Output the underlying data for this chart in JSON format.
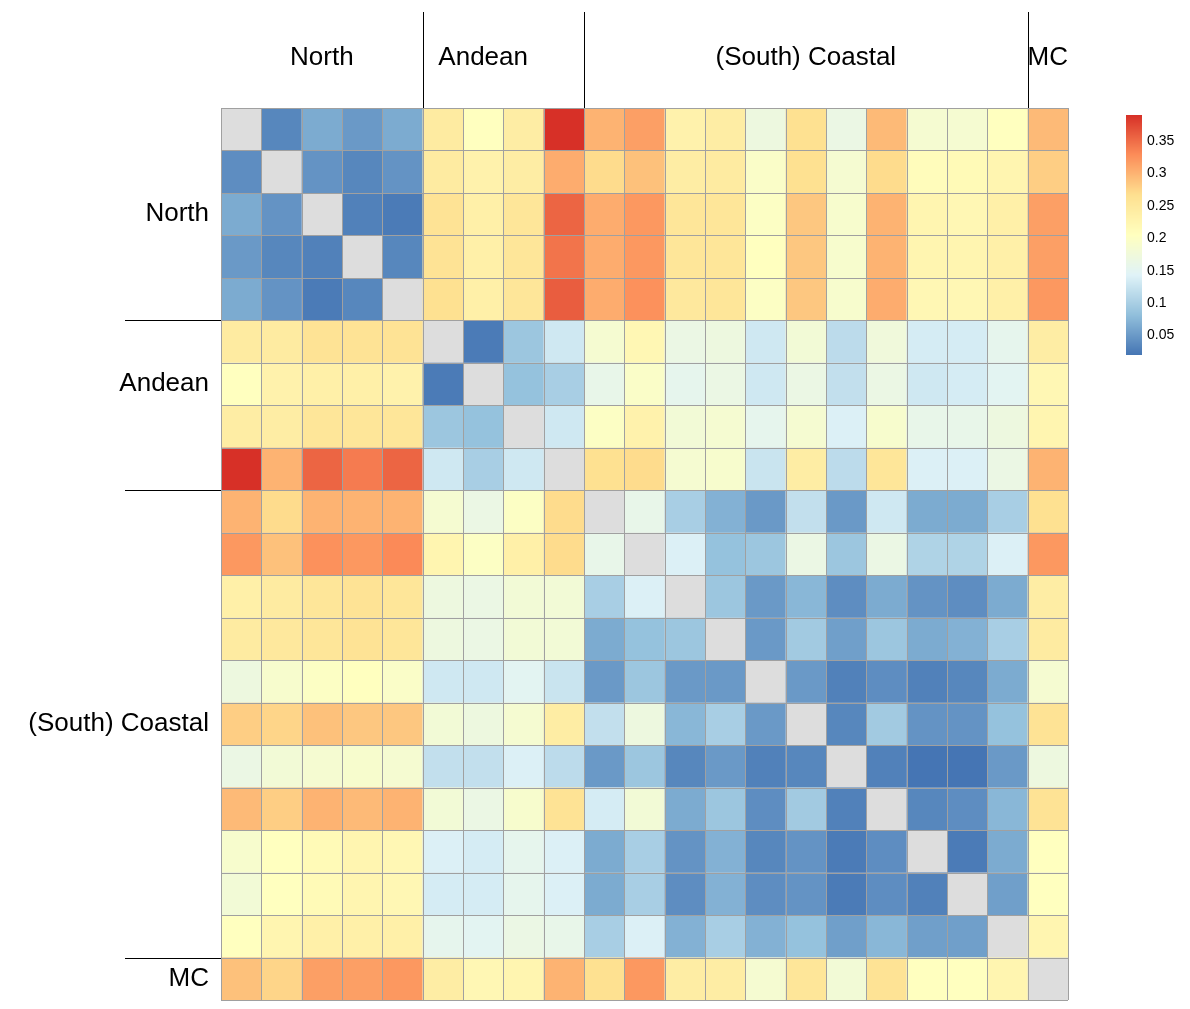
{
  "chart_data": {
    "type": "heatmap",
    "categories": [
      null,
      null,
      "North",
      null,
      null,
      null,
      "Andean",
      null,
      null,
      null,
      null,
      null,
      null,
      null,
      "(South) Coastal",
      null,
      null,
      null,
      null,
      null,
      "MC"
    ],
    "y_categories": [
      null,
      null,
      "North",
      null,
      null,
      null,
      "Andean",
      null,
      null,
      null,
      null,
      null,
      null,
      null,
      "(South) Coastal",
      null,
      null,
      null,
      null,
      null,
      "MC"
    ],
    "grid": true,
    "cells": [
      [
        null,
        0.035,
        0.065,
        0.05,
        0.065,
        0.245,
        0.205,
        0.24,
        0.39,
        0.3,
        0.315,
        0.23,
        0.24,
        0.17,
        0.265,
        0.165,
        0.295,
        0.185,
        0.185,
        0.205,
        0.295
      ],
      [
        0.04,
        null,
        0.045,
        0.035,
        0.045,
        0.245,
        0.23,
        0.24,
        0.305,
        0.27,
        0.29,
        0.24,
        0.245,
        0.195,
        0.265,
        0.185,
        0.27,
        0.21,
        0.215,
        0.225,
        0.28
      ],
      [
        0.065,
        0.045,
        null,
        0.03,
        0.025,
        0.26,
        0.235,
        0.255,
        0.355,
        0.305,
        0.32,
        0.255,
        0.255,
        0.2,
        0.285,
        0.19,
        0.3,
        0.225,
        0.22,
        0.235,
        0.315
      ],
      [
        0.05,
        0.035,
        0.03,
        null,
        0.035,
        0.26,
        0.235,
        0.255,
        0.345,
        0.305,
        0.32,
        0.255,
        0.255,
        0.205,
        0.285,
        0.19,
        0.3,
        0.225,
        0.225,
        0.235,
        0.315
      ],
      [
        0.065,
        0.045,
        0.025,
        0.035,
        null,
        0.265,
        0.235,
        0.255,
        0.36,
        0.305,
        0.325,
        0.25,
        0.255,
        0.2,
        0.285,
        0.19,
        0.305,
        0.22,
        0.22,
        0.235,
        0.32
      ],
      [
        0.245,
        0.245,
        0.26,
        0.26,
        0.26,
        null,
        0.025,
        0.09,
        0.13,
        0.185,
        0.22,
        0.165,
        0.17,
        0.13,
        0.18,
        0.115,
        0.175,
        0.135,
        0.135,
        0.155,
        0.24
      ],
      [
        0.205,
        0.23,
        0.235,
        0.235,
        0.23,
        0.025,
        null,
        0.085,
        0.1,
        0.16,
        0.195,
        0.155,
        0.165,
        0.13,
        0.165,
        0.12,
        0.165,
        0.13,
        0.135,
        0.15,
        0.22
      ],
      [
        0.24,
        0.24,
        0.255,
        0.255,
        0.255,
        0.09,
        0.085,
        null,
        0.13,
        0.2,
        0.23,
        0.18,
        0.185,
        0.155,
        0.185,
        0.14,
        0.19,
        0.16,
        0.16,
        0.17,
        0.225
      ],
      [
        0.39,
        0.3,
        0.355,
        0.34,
        0.355,
        0.13,
        0.1,
        0.13,
        null,
        0.265,
        0.27,
        0.185,
        0.19,
        0.125,
        0.24,
        0.115,
        0.255,
        0.14,
        0.14,
        0.165,
        0.3
      ],
      [
        0.3,
        0.27,
        0.3,
        0.3,
        0.3,
        0.185,
        0.165,
        0.2,
        0.27,
        null,
        0.16,
        0.1,
        0.07,
        0.05,
        0.12,
        0.05,
        0.13,
        0.065,
        0.065,
        0.1,
        0.265
      ],
      [
        0.32,
        0.29,
        0.325,
        0.32,
        0.33,
        0.225,
        0.2,
        0.235,
        0.27,
        0.16,
        null,
        0.14,
        0.085,
        0.09,
        0.165,
        0.09,
        0.165,
        0.105,
        0.105,
        0.14,
        0.32
      ],
      [
        0.235,
        0.245,
        0.255,
        0.26,
        0.255,
        0.17,
        0.165,
        0.18,
        0.18,
        0.1,
        0.14,
        null,
        0.09,
        0.05,
        0.075,
        0.04,
        0.065,
        0.045,
        0.04,
        0.065,
        0.24
      ],
      [
        0.245,
        0.25,
        0.255,
        0.26,
        0.255,
        0.17,
        0.165,
        0.18,
        0.18,
        0.065,
        0.085,
        0.09,
        null,
        0.05,
        0.095,
        0.055,
        0.09,
        0.065,
        0.07,
        0.1,
        0.245
      ],
      [
        0.17,
        0.19,
        0.2,
        0.205,
        0.195,
        0.13,
        0.13,
        0.15,
        0.125,
        0.05,
        0.09,
        0.05,
        0.05,
        null,
        0.05,
        0.03,
        0.04,
        0.03,
        0.035,
        0.065,
        0.185
      ],
      [
        0.28,
        0.275,
        0.29,
        0.285,
        0.285,
        0.18,
        0.17,
        0.185,
        0.24,
        0.12,
        0.17,
        0.075,
        0.1,
        0.05,
        null,
        0.035,
        0.095,
        0.045,
        0.045,
        0.085,
        0.26
      ],
      [
        0.165,
        0.18,
        0.185,
        0.19,
        0.185,
        0.12,
        0.12,
        0.14,
        0.115,
        0.05,
        0.09,
        0.035,
        0.05,
        0.03,
        0.035,
        null,
        0.03,
        0.02,
        0.02,
        0.05,
        0.17
      ],
      [
        0.295,
        0.28,
        0.3,
        0.295,
        0.3,
        0.18,
        0.165,
        0.19,
        0.26,
        0.135,
        0.18,
        0.065,
        0.09,
        0.04,
        0.095,
        0.03,
        null,
        0.035,
        0.04,
        0.075,
        0.26
      ],
      [
        0.19,
        0.205,
        0.215,
        0.225,
        0.22,
        0.14,
        0.135,
        0.155,
        0.14,
        0.065,
        0.1,
        0.045,
        0.07,
        0.035,
        0.045,
        0.025,
        0.04,
        null,
        0.025,
        0.065,
        0.205
      ],
      [
        0.18,
        0.205,
        0.215,
        0.225,
        0.22,
        0.135,
        0.135,
        0.155,
        0.14,
        0.065,
        0.1,
        0.04,
        0.07,
        0.04,
        0.045,
        0.025,
        0.04,
        0.03,
        null,
        0.055,
        0.205
      ],
      [
        0.205,
        0.225,
        0.235,
        0.235,
        0.235,
        0.155,
        0.15,
        0.165,
        0.16,
        0.1,
        0.14,
        0.07,
        0.1,
        0.07,
        0.085,
        0.055,
        0.075,
        0.055,
        0.055,
        null,
        0.225
      ],
      [
        0.29,
        0.275,
        0.315,
        0.315,
        0.32,
        0.24,
        0.22,
        0.225,
        0.3,
        0.265,
        0.32,
        0.24,
        0.24,
        0.185,
        0.255,
        0.18,
        0.26,
        0.205,
        0.205,
        0.225,
        null
      ]
    ],
    "clim": [
      0.02,
      0.39
    ],
    "cticks": [
      0.05,
      0.1,
      0.15,
      0.2,
      0.25,
      0.3,
      0.35
    ]
  }
}
